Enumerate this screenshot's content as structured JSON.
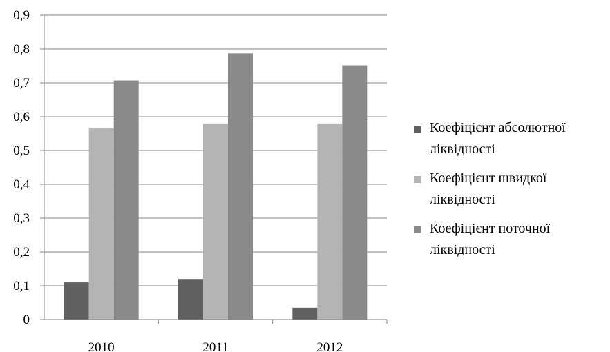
{
  "chart_data": {
    "type": "bar",
    "categories": [
      "2010",
      "2011",
      "2012"
    ],
    "series": [
      {
        "name": "Коефіцієнт абсолютної ліквідності",
        "color": "#606060",
        "values": [
          0.11,
          0.12,
          0.035
        ]
      },
      {
        "name": "Коефіцієнт швидкої ліквідності",
        "color": "#b4b4b4",
        "values": [
          0.565,
          0.58,
          0.58
        ]
      },
      {
        "name": "Коефіцієнт поточної ліквідності",
        "color": "#8a8a8a",
        "values": [
          0.707,
          0.787,
          0.752
        ]
      }
    ],
    "yticks": [
      "0",
      "0,1",
      "0,2",
      "0,3",
      "0,4",
      "0,5",
      "0,6",
      "0,7",
      "0,8",
      "0,9"
    ],
    "ylim": [
      0,
      0.9
    ],
    "grid": true,
    "legend_position": "right"
  }
}
